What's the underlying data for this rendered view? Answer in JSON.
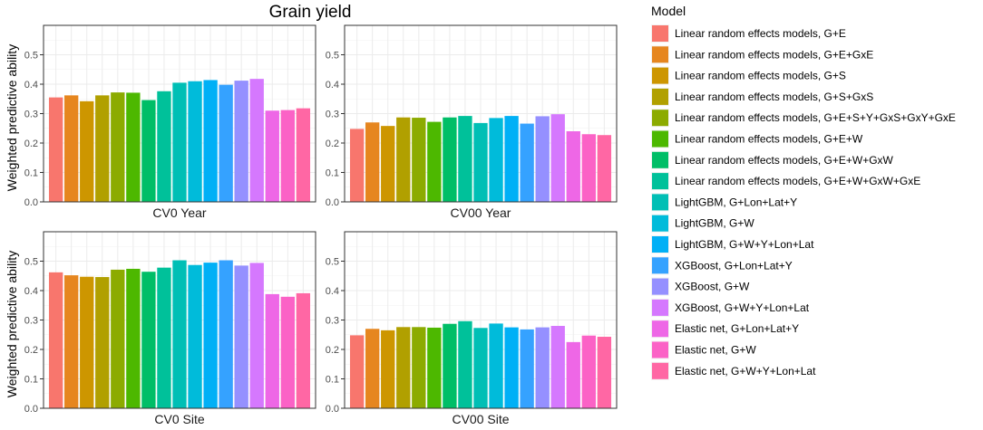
{
  "chart_data": {
    "type": "bar",
    "title": "Grain yield",
    "ylabel": "Weighted predictive ability",
    "ylim": [
      0,
      0.6
    ],
    "yticks": [
      "0.0",
      "0.1",
      "0.2",
      "0.3",
      "0.4",
      "0.5"
    ],
    "legend_title": "Model",
    "legend_position": "right",
    "models": [
      {
        "name": "Linear random effects models, G+E",
        "color": "#F8766D"
      },
      {
        "name": "Linear random effects models, G+E+GxE",
        "color": "#E6861F"
      },
      {
        "name": "Linear random effects models, G+S",
        "color": "#CD9600"
      },
      {
        "name": "Linear random effects models, G+S+GxS",
        "color": "#B1A000"
      },
      {
        "name": "Linear random effects models, G+E+S+Y+GxS+GxY+GxE",
        "color": "#8CAB00"
      },
      {
        "name": "Linear random effects models, G+E+W",
        "color": "#4DB800"
      },
      {
        "name": "Linear random effects models, G+E+W+GxW",
        "color": "#00BE67"
      },
      {
        "name": "Linear random effects models, G+E+W+GxW+GxE",
        "color": "#00C19A"
      },
      {
        "name": "LightGBM, G+Lon+Lat+Y",
        "color": "#00BFB5"
      },
      {
        "name": "LightGBM, G+W",
        "color": "#00BBDA"
      },
      {
        "name": "LightGBM, G+W+Y+Lon+Lat",
        "color": "#00B0F6"
      },
      {
        "name": "XGBoost, G+Lon+Lat+Y",
        "color": "#35A2FF"
      },
      {
        "name": "XGBoost, G+W",
        "color": "#9590FF"
      },
      {
        "name": "XGBoost, G+W+Y+Lon+Lat",
        "color": "#D578FE"
      },
      {
        "name": "Elastic net, G+Lon+Lat+Y",
        "color": "#EE67E6"
      },
      {
        "name": "Elastic net, G+W",
        "color": "#FB62C6"
      },
      {
        "name": "Elastic net, G+W+Y+Lon+Lat",
        "color": "#FF67A4"
      }
    ],
    "panels": [
      {
        "label": "CV0 Year",
        "values": [
          0.355,
          0.362,
          0.342,
          0.362,
          0.372,
          0.371,
          0.346,
          0.376,
          0.405,
          0.41,
          0.414,
          0.398,
          0.412,
          0.418,
          0.31,
          0.312,
          0.318
        ]
      },
      {
        "label": "CV00 Year",
        "values": [
          0.248,
          0.27,
          0.258,
          0.287,
          0.286,
          0.272,
          0.287,
          0.292,
          0.268,
          0.285,
          0.292,
          0.266,
          0.291,
          0.298,
          0.24,
          0.23,
          0.227
        ]
      },
      {
        "label": "CV0 Site",
        "values": [
          0.462,
          0.452,
          0.447,
          0.446,
          0.471,
          0.474,
          0.464,
          0.478,
          0.503,
          0.487,
          0.495,
          0.503,
          0.485,
          0.494,
          0.388,
          0.379,
          0.391
        ]
      },
      {
        "label": "CV00 Site",
        "values": [
          0.248,
          0.27,
          0.265,
          0.276,
          0.276,
          0.274,
          0.287,
          0.296,
          0.273,
          0.288,
          0.275,
          0.268,
          0.275,
          0.28,
          0.225,
          0.247,
          0.243
        ]
      }
    ]
  }
}
